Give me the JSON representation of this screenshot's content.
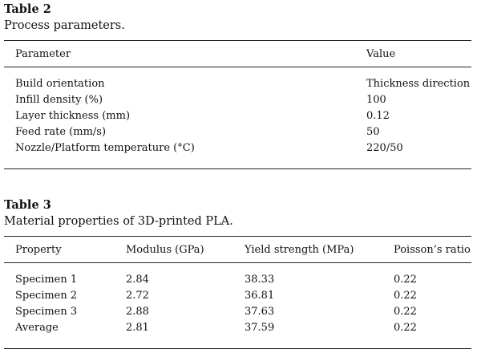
{
  "table2": {
    "label": "Table 2",
    "caption": "Process parameters.",
    "headers": [
      "Parameter",
      "Value"
    ],
    "rows": [
      [
        "Build orientation",
        "Thickness direction"
      ],
      [
        "Infill density (%)",
        "100"
      ],
      [
        "Layer thickness (mm)",
        "0.12"
      ],
      [
        "Feed rate (mm/s)",
        "50"
      ],
      [
        "Nozzle/Platform temperature (°C)",
        "220/50"
      ]
    ]
  },
  "table3": {
    "label": "Table 3",
    "caption": "Material properties of 3D-printed PLA.",
    "headers": [
      "Property",
      "Modulus (GPa)",
      "Yield strength (MPa)",
      "Poisson’s ratio"
    ],
    "rows": [
      [
        "Specimen 1",
        "2.84",
        "38.33",
        "0.22"
      ],
      [
        "Specimen 2",
        "2.72",
        "36.81",
        "0.22"
      ],
      [
        "Specimen 3",
        "2.88",
        "37.63",
        "0.22"
      ],
      [
        "Average",
        "2.81",
        "37.59",
        "0.22"
      ]
    ]
  }
}
